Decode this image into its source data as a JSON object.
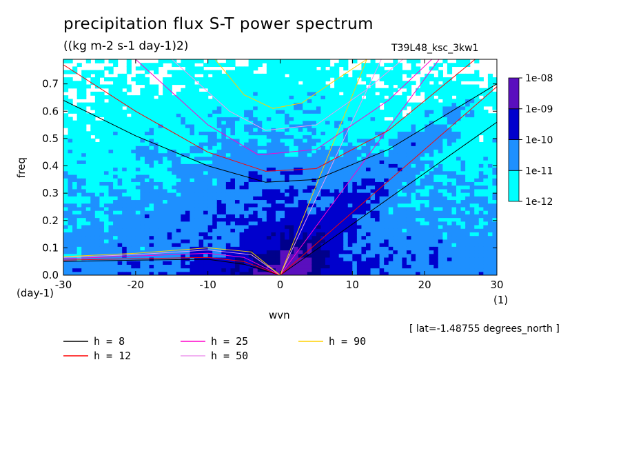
{
  "title": "precipitation flux S-T power spectrum",
  "units": "((kg m-2 s-1 day-1)2)",
  "dataset": "T39L48_ksc_3kw1",
  "note": "[ lat=-1.48755 degrees_north ]",
  "colors": {
    "background": "#ffffff",
    "level_colors": [
      "#00ffff",
      "#1e90ff",
      "#0000cd",
      "#00008b",
      "#5a0fbe"
    ],
    "curve_colors": {
      "8": "#000000",
      "12": "#ff0000",
      "25": "#ff00cc",
      "50": "#ee99ee",
      "90": "#ffd000"
    }
  },
  "chart_data": {
    "type": "heatmap",
    "title": "precipitation flux S-T power spectrum",
    "subtitle": "((kg m-2 s-1 day-1)2)",
    "xlabel": "wvn",
    "xunit": "(1)",
    "ylabel": "freq",
    "yunit": "(day-1)",
    "xlim": [
      -30,
      30
    ],
    "ylim": [
      0,
      0.79
    ],
    "xticks": [
      "-30",
      "-20",
      "-10",
      "0",
      "10",
      "20",
      "30"
    ],
    "xtick_values": [
      -30,
      -20,
      -10,
      0,
      10,
      20,
      30
    ],
    "yticks": [
      "0.0",
      "0.1",
      "0.2",
      "0.3",
      "0.4",
      "0.5",
      "0.6",
      "0.7"
    ],
    "ytick_values": [
      0,
      0.1,
      0.2,
      0.3,
      0.4,
      0.5,
      0.6,
      0.7
    ],
    "colorbar": {
      "labels": [
        "1e-12",
        "1e-11",
        "1e-10",
        "1e-09",
        "1e-08"
      ],
      "levels": [
        1e-12,
        1e-11,
        1e-10,
        1e-09,
        1e-08
      ]
    },
    "dispersion_curves": {
      "legend": [
        {
          "label": "h =  8",
          "h": 8
        },
        {
          "label": "h = 25",
          "h": 25
        },
        {
          "label": "h = 90",
          "h": 90
        },
        {
          "label": "h = 12",
          "h": 12
        },
        {
          "label": "h = 50",
          "h": 50
        }
      ],
      "min_freq_rossby_gravity": {
        "8": 0.33,
        "12": 0.37,
        "25": 0.43,
        "50": 0.52,
        "90": 0.61
      },
      "lines": [
        {
          "family": "kelvin",
          "h": 8,
          "points": [
            [
              0,
              0
            ],
            [
              30,
              0.56
            ]
          ]
        },
        {
          "family": "kelvin",
          "h": 12,
          "points": [
            [
              0,
              0
            ],
            [
              30,
              0.69
            ]
          ]
        },
        {
          "family": "kelvin",
          "h": 25,
          "points": [
            [
              0,
              0
            ],
            [
              22,
              0.79
            ]
          ]
        },
        {
          "family": "kelvin",
          "h": 50,
          "points": [
            [
              0,
              0
            ],
            [
              14,
              0.79
            ]
          ]
        },
        {
          "family": "kelvin",
          "h": 90,
          "points": [
            [
              0,
              0
            ],
            [
              12,
              0.79
            ]
          ]
        },
        {
          "family": "inertia-gravity",
          "h": 8,
          "points": [
            [
              -30,
              0.64
            ],
            [
              -20,
              0.51
            ],
            [
              -10,
              0.4
            ],
            [
              -2,
              0.34
            ],
            [
              5,
              0.35
            ],
            [
              15,
              0.46
            ],
            [
              30,
              0.7
            ]
          ]
        },
        {
          "family": "inertia-gravity",
          "h": 12,
          "points": [
            [
              -30,
              0.77
            ],
            [
              -20,
              0.6
            ],
            [
              -10,
              0.45
            ],
            [
              -2,
              0.38
            ],
            [
              5,
              0.39
            ],
            [
              15,
              0.53
            ],
            [
              27,
              0.79
            ]
          ]
        },
        {
          "family": "inertia-gravity",
          "h": 25,
          "points": [
            [
              -20,
              0.79
            ],
            [
              -10,
              0.55
            ],
            [
              -3,
              0.44
            ],
            [
              5,
              0.46
            ],
            [
              15,
              0.64
            ],
            [
              21,
              0.79
            ]
          ]
        },
        {
          "family": "inertia-gravity",
          "h": 50,
          "points": [
            [
              -15,
              0.79
            ],
            [
              -7,
              0.6
            ],
            [
              -2,
              0.53
            ],
            [
              5,
              0.55
            ],
            [
              12,
              0.68
            ],
            [
              17,
              0.79
            ]
          ]
        },
        {
          "family": "inertia-gravity",
          "h": 90,
          "points": [
            [
              -9,
              0.79
            ],
            [
              -5,
              0.66
            ],
            [
              -1,
              0.61
            ],
            [
              3,
              0.63
            ],
            [
              8,
              0.72
            ],
            [
              12,
              0.79
            ]
          ]
        },
        {
          "family": "rossby",
          "h": 8,
          "points": [
            [
              -30,
              0.05
            ],
            [
              -20,
              0.055
            ],
            [
              -10,
              0.058
            ],
            [
              -5,
              0.04
            ],
            [
              0,
              0
            ]
          ]
        },
        {
          "family": "rossby",
          "h": 12,
          "points": [
            [
              -30,
              0.055
            ],
            [
              -20,
              0.06
            ],
            [
              -10,
              0.065
            ],
            [
              -5,
              0.05
            ],
            [
              0,
              0
            ]
          ]
        },
        {
          "family": "rossby",
          "h": 25,
          "points": [
            [
              -30,
              0.06
            ],
            [
              -20,
              0.07
            ],
            [
              -10,
              0.08
            ],
            [
              -5,
              0.065
            ],
            [
              0,
              0
            ]
          ]
        },
        {
          "family": "rossby",
          "h": 50,
          "points": [
            [
              -30,
              0.065
            ],
            [
              -20,
              0.075
            ],
            [
              -10,
              0.092
            ],
            [
              -4,
              0.075
            ],
            [
              0,
              0
            ]
          ]
        },
        {
          "family": "rossby",
          "h": 90,
          "points": [
            [
              -30,
              0.068
            ],
            [
              -20,
              0.08
            ],
            [
              -10,
              0.1
            ],
            [
              -4,
              0.085
            ],
            [
              0,
              0
            ]
          ]
        }
      ]
    }
  }
}
